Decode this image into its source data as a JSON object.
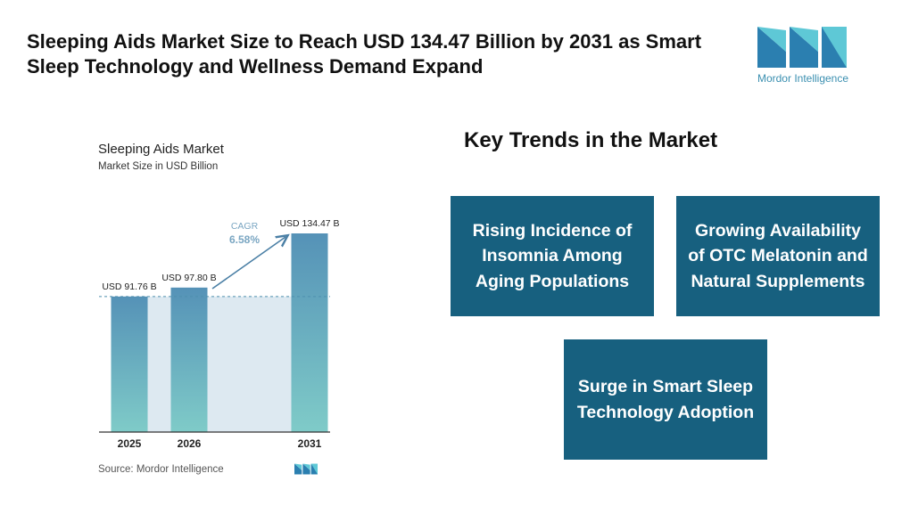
{
  "headline": "Sleeping Aids Market Size to Reach USD 134.47 Billion by 2031 as Smart Sleep Technology and Wellness Demand Expand",
  "logo": {
    "name": "mordor-intelligence-logo",
    "text": "Mordor Intelligence",
    "colors": [
      "#2b7fb0",
      "#5ec8d6"
    ]
  },
  "chart_data": {
    "type": "bar",
    "title": "Sleeping Aids Market",
    "subtitle": "Market Size in USD Billion",
    "categories": [
      "2025",
      "2026",
      "2031"
    ],
    "values": [
      91.76,
      97.8,
      134.47
    ],
    "data_labels": [
      "USD 91.76 B",
      "USD 97.80 B",
      "USD 134.47 B"
    ],
    "cagr_label": "CAGR",
    "cagr_value": "6.58%",
    "ylim": [
      0,
      134.47
    ],
    "grid": false,
    "colors": {
      "bar_top": "#5592b7",
      "bar_bottom": "#7fcbc8",
      "band": "#dde9f1",
      "reference_line": "#4d8fae",
      "cagr_text": "#7aa6c2",
      "arrow": "#4a7fa5"
    }
  },
  "source": "Source: Mordor Intelligence",
  "trends": {
    "title": "Key Trends in the Market",
    "items": [
      "Rising Incidence of Insomnia Among Aging Populations",
      "Growing Availability of OTC Melatonin and Natural Supplements",
      "Surge in Smart Sleep Technology Adoption"
    ],
    "box_color": "#17607f"
  }
}
